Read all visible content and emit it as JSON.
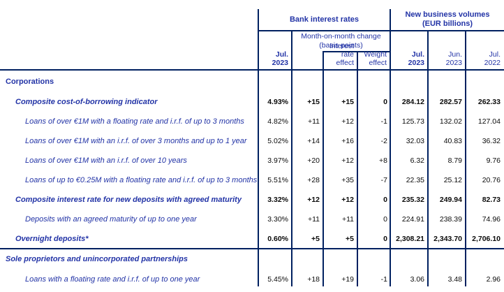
{
  "colors": {
    "accent_text_blue": "#2233a6",
    "border_navy": "#002060",
    "number_black": "#0a0a0a"
  },
  "header": {
    "bank_group": "Bank interest rates",
    "volumes_group_line1": "New business volumes",
    "volumes_group_line2": "(EUR billions)",
    "mom_line1": "Month-on-month change",
    "mom_line2": "(basis points)",
    "rate_col_line1": "Jul.",
    "rate_col_line2": "2023",
    "interest_effect_line1": "Interest",
    "interest_effect_line2": "rate effect",
    "weight_effect_line1": "Weight",
    "weight_effect_line2": "effect",
    "vol1_line1": "Jul.",
    "vol1_line2": "2023",
    "vol2_line1": "Jun.",
    "vol2_line2": "2023",
    "vol3_line1": "Jul.",
    "vol3_line2": "2022"
  },
  "rows": [
    {
      "kind": "section",
      "level": 0,
      "label": "Corporations",
      "rate": "",
      "mom": "",
      "ire": "",
      "we": "",
      "vol1": "",
      "vol2": "",
      "vol3": ""
    },
    {
      "kind": "composite",
      "level": 1,
      "label": "Composite cost-of-borrowing indicator",
      "rate": "4.93%",
      "mom": "+15",
      "ire": "+15",
      "we": "0",
      "vol1": "284.12",
      "vol2": "282.57",
      "vol3": "262.33"
    },
    {
      "kind": "item",
      "level": 2,
      "label": "Loans of over €1M with a floating rate and i.r.f. of up to 3 months",
      "rate": "4.82%",
      "mom": "+11",
      "ire": "+12",
      "we": "-1",
      "vol1": "125.73",
      "vol2": "132.02",
      "vol3": "127.04"
    },
    {
      "kind": "item",
      "level": 2,
      "label": "Loans of over €1M with an i.r.f. of over 3 months and up to 1 year",
      "rate": "5.02%",
      "mom": "+14",
      "ire": "+16",
      "we": "-2",
      "vol1": "32.03",
      "vol2": "40.83",
      "vol3": "36.32"
    },
    {
      "kind": "item",
      "level": 2,
      "label": "Loans of over €1M with an i.r.f. of over 10 years",
      "rate": "3.97%",
      "mom": "+20",
      "ire": "+12",
      "we": "+8",
      "vol1": "6.32",
      "vol2": "8.79",
      "vol3": "9.76"
    },
    {
      "kind": "item",
      "level": 2,
      "label": "Loans of up to €0.25M with a floating rate and i.r.f. of up to 3 months",
      "rate": "5.51%",
      "mom": "+28",
      "ire": "+35",
      "we": "-7",
      "vol1": "22.35",
      "vol2": "25.12",
      "vol3": "20.76"
    },
    {
      "kind": "composite",
      "level": 1,
      "label": "Composite interest rate for new deposits with agreed maturity",
      "rate": "3.32%",
      "mom": "+12",
      "ire": "+12",
      "we": "0",
      "vol1": "235.32",
      "vol2": "249.94",
      "vol3": "82.73"
    },
    {
      "kind": "item",
      "level": 2,
      "label": "Deposits with an agreed maturity of up to one year",
      "rate": "3.30%",
      "mom": "+11",
      "ire": "+11",
      "we": "0",
      "vol1": "224.91",
      "vol2": "238.39",
      "vol3": "74.96"
    },
    {
      "kind": "composite",
      "level": 1,
      "label": "Overnight deposits*",
      "rate": "0.60%",
      "mom": "+5",
      "ire": "+5",
      "we": "0",
      "vol1": "2,308.21",
      "vol2": "2,343.70",
      "vol3": "2,706.10"
    },
    {
      "kind": "section-em",
      "level": 0,
      "label": "Sole proprietors and unincorporated partnerships",
      "rate": "",
      "mom": "",
      "ire": "",
      "we": "",
      "vol1": "",
      "vol2": "",
      "vol3": ""
    },
    {
      "kind": "item",
      "level": 2,
      "label": "Loans with a floating rate and i.r.f. of up to one year",
      "rate": "5.45%",
      "mom": "+18",
      "ire": "+19",
      "we": "-1",
      "vol1": "3.06",
      "vol2": "3.48",
      "vol3": "2.96"
    }
  ]
}
